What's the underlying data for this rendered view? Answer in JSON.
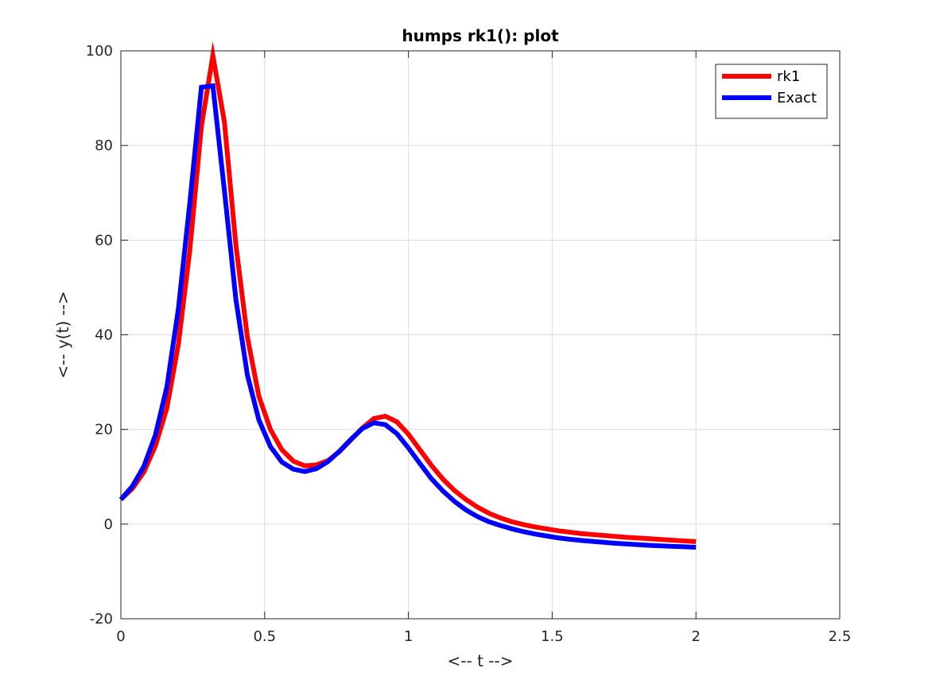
{
  "chart_data": {
    "type": "line",
    "title": "humps rk1(): plot",
    "xlabel": "<-- t -->",
    "ylabel": "<-- y(t) -->",
    "xlim": [
      0,
      2.5
    ],
    "ylim": [
      -20,
      100
    ],
    "xticks": [
      0,
      0.5,
      1,
      1.5,
      2,
      2.5
    ],
    "xtick_labels": [
      "0",
      "0.5",
      "1",
      "1.5",
      "2",
      "2.5"
    ],
    "yticks": [
      -20,
      0,
      20,
      40,
      60,
      80,
      100
    ],
    "ytick_labels": [
      "-20",
      "0",
      "20",
      "40",
      "60",
      "80",
      "100"
    ],
    "grid": true,
    "legend_position": "top-right",
    "x": [
      0,
      0.04,
      0.08,
      0.12,
      0.16,
      0.2,
      0.24,
      0.28,
      0.32,
      0.36,
      0.4,
      0.44,
      0.48,
      0.52,
      0.56,
      0.6,
      0.64,
      0.68,
      0.72,
      0.76,
      0.8,
      0.84,
      0.88,
      0.92,
      0.96,
      1.0,
      1.04,
      1.08,
      1.12,
      1.16,
      1.2,
      1.24,
      1.28,
      1.32,
      1.36,
      1.4,
      1.44,
      1.48,
      1.52,
      1.56,
      1.6,
      1.64,
      1.68,
      1.72,
      1.76,
      1.8,
      1.84,
      1.88,
      1.92,
      1.96,
      2.0
    ],
    "series": [
      {
        "name": "rk1",
        "color": "#ff0000",
        "values": [
          5.2,
          7.5,
          11.0,
          16.5,
          24.5,
          38.0,
          58.0,
          84.0,
          99.0,
          85.0,
          59.0,
          39.5,
          27.0,
          20.0,
          15.7,
          13.3,
          12.3,
          12.5,
          13.4,
          15.3,
          17.8,
          20.3,
          22.3,
          22.8,
          21.6,
          19.0,
          15.7,
          12.4,
          9.5,
          7.1,
          5.2,
          3.6,
          2.3,
          1.3,
          0.5,
          -0.1,
          -0.6,
          -1.0,
          -1.4,
          -1.7,
          -2.0,
          -2.2,
          -2.4,
          -2.6,
          -2.8,
          -2.95,
          -3.1,
          -3.25,
          -3.4,
          -3.55,
          -3.7
        ]
      },
      {
        "name": "Exact",
        "color": "#0000ff",
        "values": [
          5.2,
          8.0,
          12.2,
          18.8,
          29.0,
          45.5,
          68.0,
          92.3,
          92.6,
          70.5,
          47.5,
          31.5,
          22.0,
          16.4,
          13.1,
          11.6,
          11.1,
          11.7,
          13.2,
          15.4,
          17.9,
          20.2,
          21.4,
          21.0,
          19.1,
          16.1,
          12.8,
          9.6,
          7.0,
          4.8,
          3.0,
          1.6,
          0.5,
          -0.3,
          -1.0,
          -1.6,
          -2.1,
          -2.5,
          -2.9,
          -3.2,
          -3.45,
          -3.65,
          -3.85,
          -4.05,
          -4.2,
          -4.35,
          -4.5,
          -4.6,
          -4.7,
          -4.8,
          -4.9
        ]
      }
    ]
  }
}
